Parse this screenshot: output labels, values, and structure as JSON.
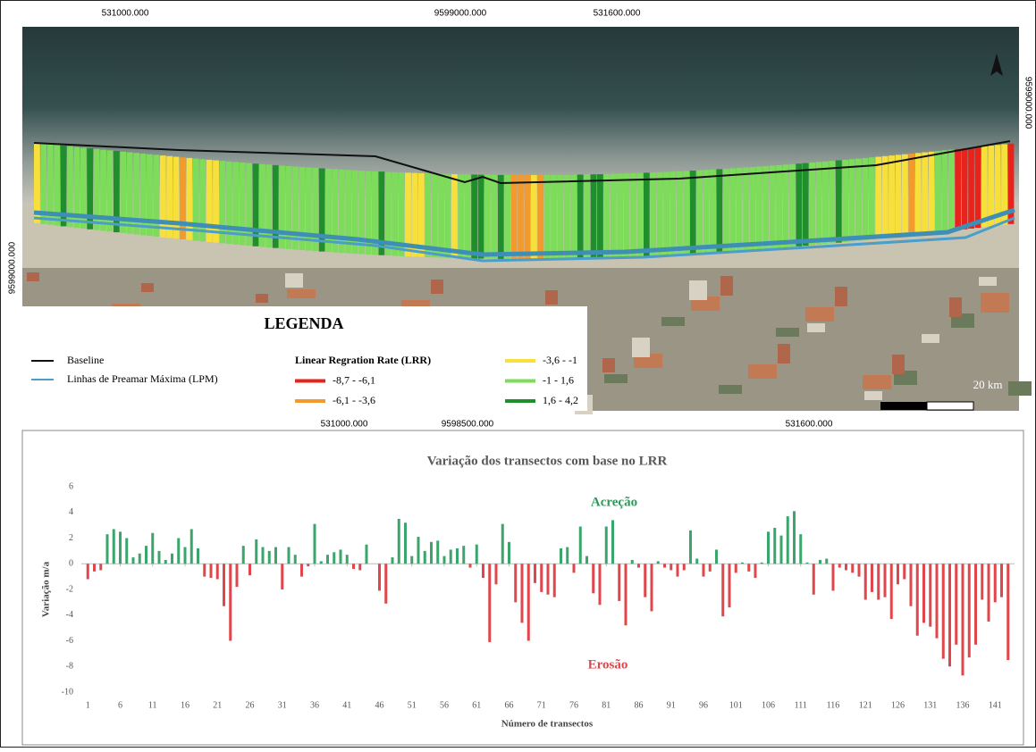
{
  "map": {
    "top_coords": [
      "531000.000",
      "9599000.000",
      "531600.000"
    ],
    "bottom_coords": [
      "531000.000",
      "9598500.000",
      "531600.000"
    ],
    "left_coord": "9599000.000",
    "right_coord": "9599000.000",
    "scale": "20 km",
    "legend": {
      "title": "LEGENDA",
      "lines": [
        {
          "name": "Baseline",
          "color": "#111111"
        },
        {
          "name": "Linhas de Preamar Máxima (LPM)",
          "color": "#4a9ec8"
        }
      ],
      "classes_title": "Linear Regration Rate (LRR)",
      "classes": [
        {
          "name": "-8,7 - -6,1",
          "color": "#e8231b"
        },
        {
          "name": "-6,1 - -3,6",
          "color": "#f39a2c"
        },
        {
          "name": "-3,6 - -1",
          "color": "#f7e03a"
        },
        {
          "name": "-1 - 1,6",
          "color": "#7ddc5a"
        },
        {
          "name": "1,6 - 4,2",
          "color": "#1f8f2c"
        }
      ]
    }
  },
  "chart_data": {
    "type": "bar",
    "title": "Variação dos transectos com base no LRR",
    "x_label": "Número de transectos",
    "y_label": "Variação m/a",
    "annotations": [
      {
        "text": "Acreção",
        "color": "#2e9a5a"
      },
      {
        "text": "Erosão",
        "color": "#e0474c"
      }
    ],
    "positive_color": "#3aa66b",
    "negative_color": "#e0474c",
    "xlim": [
      0,
      144
    ],
    "xticks": [
      1,
      6,
      11,
      16,
      21,
      26,
      31,
      36,
      41,
      46,
      51,
      56,
      61,
      66,
      71,
      76,
      81,
      86,
      91,
      96,
      101,
      106,
      111,
      116,
      121,
      126,
      131,
      136,
      141
    ],
    "ylim": [
      -10,
      6
    ],
    "yticks": [
      -10,
      -8,
      -6,
      -4,
      -2,
      0,
      2,
      4,
      6
    ],
    "x": [
      1,
      2,
      3,
      4,
      5,
      6,
      7,
      8,
      9,
      10,
      11,
      12,
      13,
      14,
      15,
      16,
      17,
      18,
      19,
      20,
      21,
      22,
      23,
      24,
      25,
      26,
      27,
      28,
      29,
      30,
      31,
      32,
      33,
      34,
      35,
      36,
      37,
      38,
      39,
      40,
      41,
      42,
      43,
      44,
      45,
      46,
      47,
      48,
      49,
      50,
      51,
      52,
      53,
      54,
      55,
      56,
      57,
      58,
      59,
      60,
      61,
      62,
      63,
      64,
      65,
      66,
      67,
      68,
      69,
      70,
      71,
      72,
      73,
      74,
      75,
      76,
      77,
      78,
      79,
      80,
      81,
      82,
      83,
      84,
      85,
      86,
      87,
      88,
      89,
      90,
      91,
      92,
      93,
      94,
      95,
      96,
      97,
      98,
      99,
      100,
      101,
      102,
      103,
      104,
      105,
      106,
      107,
      108,
      109,
      110,
      111,
      112,
      113,
      114,
      115,
      116,
      117,
      118,
      119,
      120,
      121,
      122,
      123,
      124,
      125,
      126,
      127,
      128,
      129,
      130,
      131,
      132,
      133,
      134,
      135,
      136,
      137,
      138,
      139,
      140,
      141,
      142,
      143
    ],
    "values": [
      -1.2,
      -0.6,
      -0.5,
      2.3,
      2.7,
      2.5,
      2.0,
      0.5,
      0.8,
      1.4,
      2.4,
      1.0,
      0.3,
      0.8,
      2.0,
      1.3,
      2.7,
      1.2,
      -1.0,
      -1.1,
      -1.2,
      -3.3,
      -6.0,
      -1.8,
      1.4,
      -0.9,
      1.9,
      1.3,
      1.0,
      1.3,
      -2.0,
      1.3,
      0.7,
      -1.0,
      -0.2,
      3.1,
      0.2,
      0.7,
      0.9,
      1.1,
      0.7,
      -0.4,
      -0.5,
      1.5,
      0.0,
      -2.1,
      -3.1,
      0.5,
      3.5,
      3.2,
      0.6,
      2.1,
      1.0,
      1.7,
      1.8,
      0.6,
      1.1,
      1.2,
      1.4,
      -0.3,
      1.5,
      -1.1,
      -6.1,
      -1.6,
      3.1,
      1.7,
      -3.0,
      -4.6,
      -6.0,
      -1.5,
      -2.2,
      -2.4,
      -2.6,
      1.2,
      1.3,
      -0.7,
      2.9,
      0.6,
      -2.3,
      -3.2,
      2.9,
      3.4,
      -2.9,
      -4.8,
      0.3,
      -0.3,
      -2.6,
      -3.7,
      0.2,
      -0.3,
      -0.5,
      -1.0,
      -0.5,
      2.6,
      0.4,
      -1.0,
      -0.6,
      1.1,
      -4.1,
      -3.4,
      -0.7,
      0.1,
      -0.6,
      -1.1,
      0.1,
      2.5,
      2.8,
      2.2,
      3.7,
      4.1,
      2.3,
      0.1,
      -2.4,
      0.3,
      0.4,
      -2.1,
      -0.3,
      -0.5,
      -0.7,
      -1.0,
      -2.8,
      -2.2,
      -2.8,
      -2.6,
      -4.3,
      -1.6,
      -1.2,
      -3.3,
      -5.6,
      -4.6,
      -4.9,
      -5.8,
      -7.4,
      -8.0,
      -6.3,
      -8.7,
      -7.3,
      -6.3,
      -2.8,
      -4.5,
      -3.0,
      -2.6,
      -7.5
    ]
  }
}
